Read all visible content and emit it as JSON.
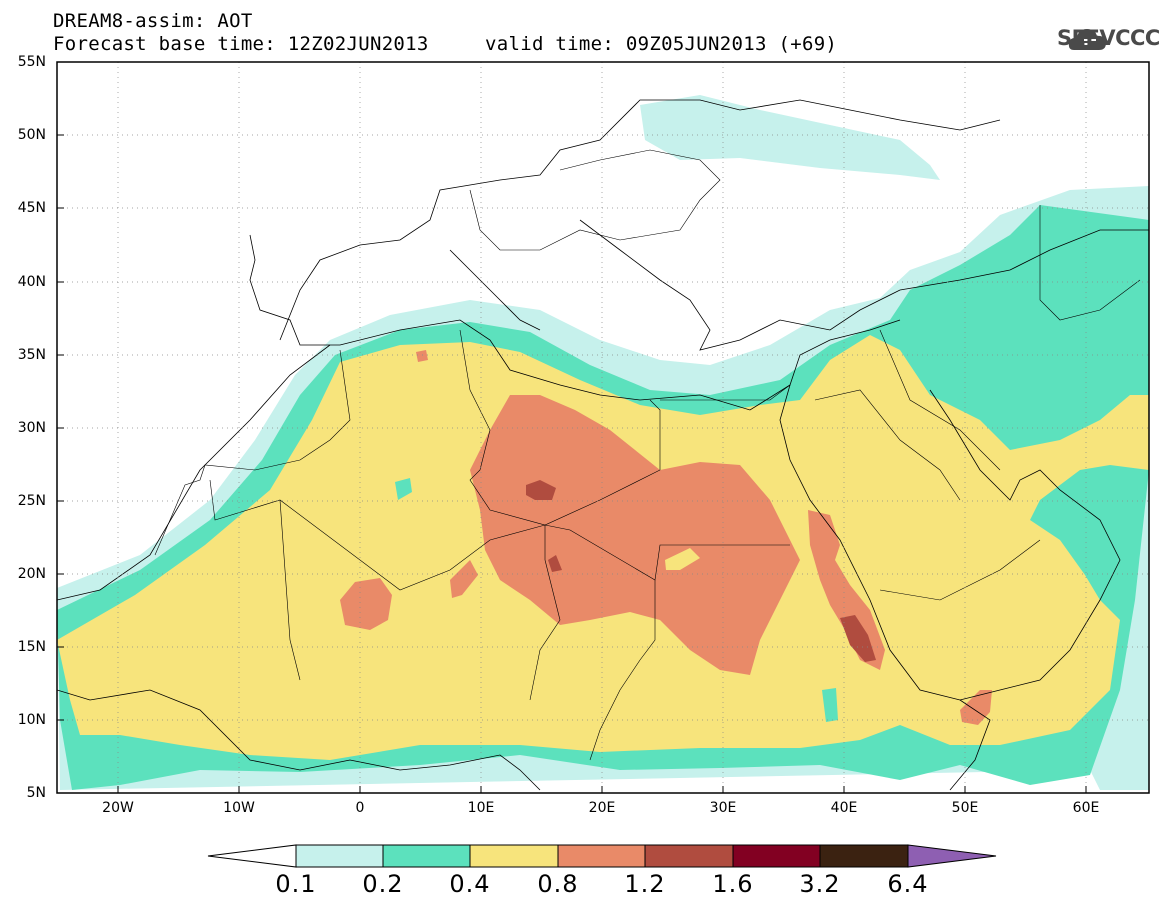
{
  "header": {
    "title": "DREAM8-assim: AOT",
    "base_time": "Forecast base time: 12Z02JUN2013",
    "valid_time": "valid time: 09Z05JUN2013 (+69)",
    "logo_text": "SEEVCCC",
    "logo_icon": "cloud-icon"
  },
  "map": {
    "lat_range": [
      5,
      55
    ],
    "lon_range": [
      -25,
      65
    ],
    "lat_ticks": [
      "55N",
      "50N",
      "45N",
      "40N",
      "35N",
      "30N",
      "25N",
      "20N",
      "15N",
      "10N",
      "5N"
    ],
    "lon_ticks": [
      "20W",
      "10W",
      "0",
      "10E",
      "20E",
      "30E",
      "40E",
      "50E",
      "60E"
    ]
  },
  "legend": {
    "labels": [
      "0.1",
      "0.2",
      "0.4",
      "0.8",
      "1.2",
      "1.6",
      "3.2",
      "6.4"
    ],
    "colors": [
      "#c6f1ec",
      "#5ce1bd",
      "#f7e47c",
      "#e98a68",
      "#b04c3f",
      "#820022",
      "#3b2211",
      "#8e5fb2"
    ],
    "below_color": "#ffffff"
  }
}
